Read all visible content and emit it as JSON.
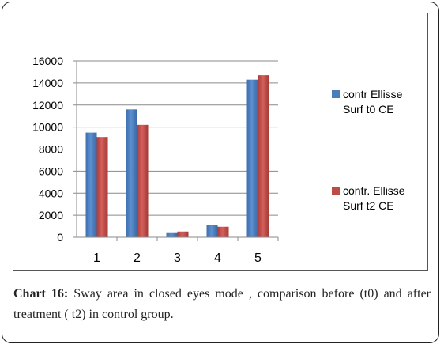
{
  "chart_data": {
    "type": "bar",
    "title": "",
    "xlabel": "",
    "ylabel": "",
    "categories": [
      "1",
      "2",
      "3",
      "4",
      "5"
    ],
    "ylim": [
      0,
      16000
    ],
    "yticks": [
      "0",
      "2000",
      "4000",
      "6000",
      "8000",
      "10000",
      "12000",
      "14000",
      "16000"
    ],
    "grid": true,
    "legend_position": "right",
    "series": [
      {
        "name": "contr Ellisse Surf t0 CE",
        "color": "#4a7ebb",
        "values": [
          9500,
          11600,
          450,
          1100,
          14300
        ]
      },
      {
        "name": "contr. Ellisse Surf t2 CE",
        "color": "#be4b48",
        "values": [
          9100,
          10200,
          520,
          950,
          14700
        ]
      }
    ]
  },
  "caption": {
    "label": "Chart 16:",
    "text": " Sway area in closed eyes mode , comparison before (t0) and after treatment ( t2) in control group."
  }
}
